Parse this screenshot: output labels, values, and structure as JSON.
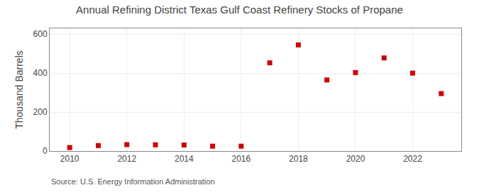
{
  "chart_data": {
    "type": "scatter",
    "title": "Annual Refining District Texas Gulf Coast Refinery Stocks of Propane",
    "ylabel": "Thousand Barrels",
    "source": "Source: U.S. Energy Information Administration",
    "x": [
      2010,
      2011,
      2012,
      2013,
      2014,
      2015,
      2016,
      2017,
      2018,
      2019,
      2020,
      2021,
      2022,
      2023
    ],
    "values": [
      18,
      28,
      33,
      32,
      31,
      25,
      25,
      453,
      545,
      365,
      403,
      478,
      400,
      295
    ],
    "color": "#cc0000",
    "marker": "square",
    "xlim": [
      2009.3,
      2023.7
    ],
    "ylim": [
      0,
      630
    ],
    "xticks": [
      2010,
      2012,
      2014,
      2016,
      2018,
      2020,
      2022
    ],
    "yticks": [
      0,
      200,
      400,
      600
    ],
    "grid": true
  }
}
